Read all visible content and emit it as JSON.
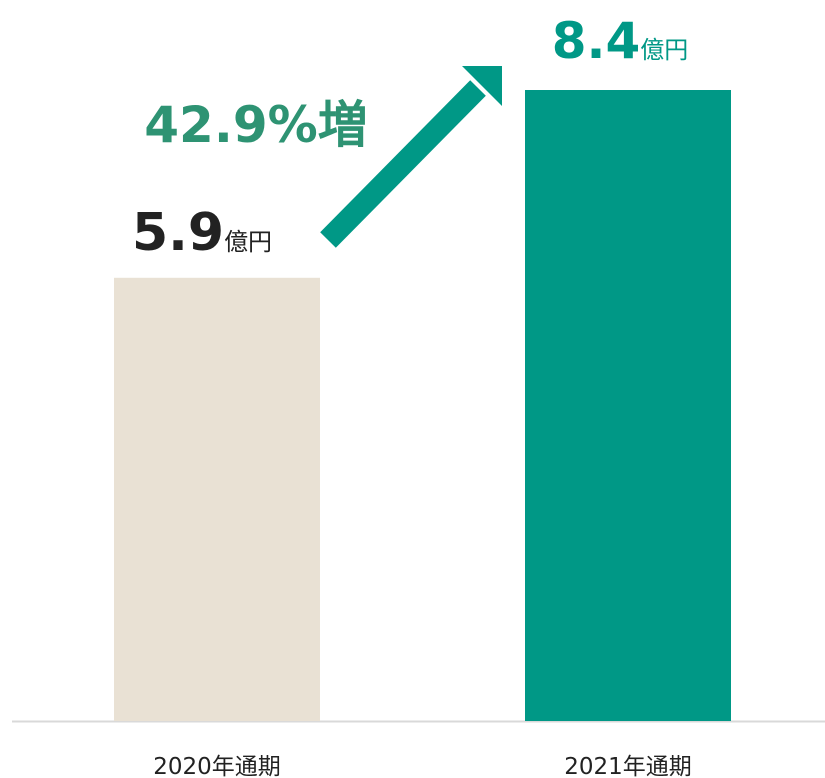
{
  "chart_data": {
    "type": "bar",
    "categories": [
      "2020年通期",
      "2021年通期"
    ],
    "values": [
      5.9,
      8.4
    ],
    "colors": [
      "#e9e1d4",
      "#009886"
    ],
    "value_label_colors": [
      "#222222",
      "#009886"
    ],
    "unit": "億円",
    "annotation": "42.9%増",
    "ylim": [
      0,
      8.4
    ]
  }
}
